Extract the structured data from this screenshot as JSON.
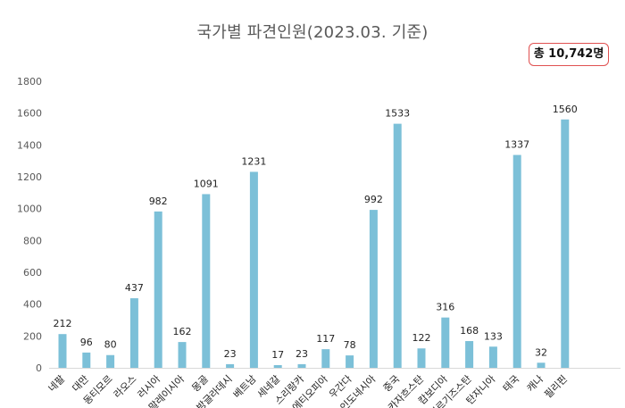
{
  "chart_data": {
    "type": "bar",
    "title": "국가별 파견인원(2023.03. 기준)",
    "total_label": "총 10,742명",
    "xlabel": "",
    "ylabel": "",
    "ylim": [
      0,
      1800
    ],
    "yticks": [
      0,
      200,
      400,
      600,
      800,
      1000,
      1200,
      1400,
      1600,
      1800
    ],
    "grid": false,
    "legend": "none",
    "bar_color": "#7cc0d8",
    "badge_border_color": "#e05050",
    "categories": [
      "네팔",
      "대만",
      "동티모르",
      "라오스",
      "러시아",
      "말레이시아",
      "몽골",
      "방글라데시",
      "베트남",
      "세네갈",
      "스리랑카",
      "에티오피아",
      "우간다",
      "인도네시아",
      "중국",
      "카자흐스탄",
      "캄보디아",
      "키르기즈스탄",
      "탄자니아",
      "태국",
      "캐나",
      "필리핀"
    ],
    "values": [
      212,
      96,
      80,
      437,
      982,
      162,
      1091,
      23,
      1231,
      17,
      23,
      117,
      78,
      992,
      1533,
      122,
      316,
      168,
      133,
      1337,
      32,
      1560
    ]
  }
}
